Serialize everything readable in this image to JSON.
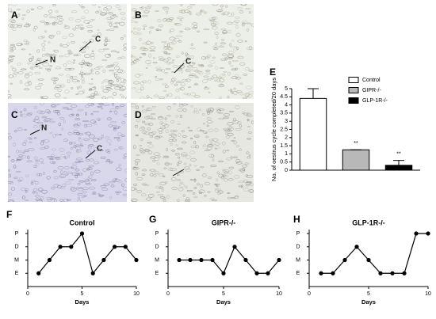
{
  "image_panels": [
    {
      "label": "A",
      "annotations": [
        "C",
        "N"
      ]
    },
    {
      "label": "B",
      "annotations": [
        "C"
      ]
    },
    {
      "label": "C",
      "annotations": [
        "N",
        "C"
      ]
    },
    {
      "label": "D",
      "annotations": []
    }
  ],
  "chart_data": [
    {
      "type": "bar",
      "panel_label": "E",
      "y_label": "No. of oestrus cycle completed/20 days",
      "categories": [
        null,
        null,
        null
      ],
      "series": [
        {
          "name": "Control",
          "color": "#ffffff"
        },
        {
          "name": "GIPR-/-",
          "color": "#b8b8b8"
        },
        {
          "name": "GLP-1R-/-",
          "color": "#000000"
        }
      ],
      "values": [
        4.4,
        1.25,
        0.3
      ],
      "errors": [
        0.6,
        0,
        0.3
      ],
      "significance": [
        null,
        "**",
        "**"
      ],
      "ylim": [
        0,
        5
      ],
      "yticks": [
        0,
        0.5,
        1,
        1.5,
        2,
        2.5,
        3,
        3.5,
        4,
        4.5,
        5
      ],
      "legend": "top-right"
    },
    {
      "type": "line",
      "panel_label": "F",
      "title": "Control",
      "x_label": "Days",
      "x": [
        1,
        2,
        3,
        4,
        5,
        6,
        7,
        8,
        9,
        10
      ],
      "values": [
        1,
        2,
        3,
        3,
        4,
        1,
        2,
        3,
        3,
        2
      ],
      "color": "#000000",
      "xlim": [
        0,
        10
      ],
      "xticks": [
        0,
        5,
        10
      ],
      "ylim": [
        0,
        4.3
      ],
      "yticks": [
        {
          "value": 1,
          "label": "E"
        },
        {
          "value": 2,
          "label": "M"
        },
        {
          "value": 3,
          "label": "D"
        },
        {
          "value": 4,
          "label": "P"
        }
      ]
    },
    {
      "type": "line",
      "panel_label": "G",
      "title": "GIPR-/-",
      "x_label": "Days",
      "x": [
        1,
        2,
        3,
        4,
        5,
        6,
        7,
        8,
        9,
        10
      ],
      "values": [
        2,
        2,
        2,
        2,
        1,
        3,
        2,
        1,
        1,
        2
      ],
      "color": "#000000",
      "xlim": [
        0,
        10
      ],
      "xticks": [
        0,
        5,
        10
      ],
      "ylim": [
        0,
        4.3
      ],
      "yticks": [
        {
          "value": 1,
          "label": "E"
        },
        {
          "value": 2,
          "label": "M"
        },
        {
          "value": 3,
          "label": "D"
        },
        {
          "value": 4,
          "label": "P"
        }
      ]
    },
    {
      "type": "line",
      "panel_label": "H",
      "title": "GLP-1R-/-",
      "x_label": "Days",
      "x": [
        1,
        2,
        3,
        4,
        5,
        6,
        7,
        8,
        9,
        10
      ],
      "values": [
        1,
        1,
        2,
        3,
        2,
        1,
        1,
        1,
        4,
        4
      ],
      "color": "#000000",
      "xlim": [
        0,
        10
      ],
      "xticks": [
        0,
        5,
        10
      ],
      "ylim": [
        0,
        4.3
      ],
      "yticks": [
        {
          "value": 1,
          "label": "E"
        },
        {
          "value": 2,
          "label": "M"
        },
        {
          "value": 3,
          "label": "D"
        },
        {
          "value": 4,
          "label": "P"
        }
      ]
    }
  ]
}
